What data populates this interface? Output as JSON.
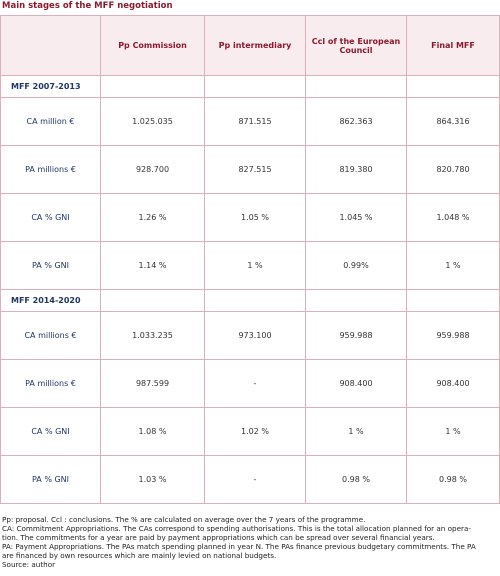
{
  "title": "Main stages of the MFF negotiation",
  "table": {
    "header": [
      "",
      "Pp Commission",
      "Pp intermediary",
      "Ccl of the European Council",
      "Final MFF"
    ],
    "sections": [
      {
        "title": "MFF 2007-2013",
        "rows": [
          [
            "CA million €",
            "1.025.035",
            "871.515",
            "862.363",
            "864.316"
          ],
          [
            "PA millions €",
            "928.700",
            "827.515",
            "819.380",
            "820.780"
          ],
          [
            "CA % GNI",
            "1.26 %",
            "1.05 %",
            "1.045 %",
            "1.048 %"
          ],
          [
            "PA % GNI",
            "1.14 %",
            "1 %",
            "0.99%",
            "1 %"
          ]
        ]
      },
      {
        "title": "MFF 2014-2020",
        "rows": [
          [
            "CA millions €",
            "1.033.235",
            "973.100",
            "959.988",
            "959.988"
          ],
          [
            "PA millions €",
            "987.599",
            "-",
            "908.400",
            "908.400"
          ],
          [
            "CA % GNI",
            "1.08 %",
            "1.02 %",
            "1 %",
            "1 %"
          ],
          [
            "PA % GNI",
            "1.03 %",
            "-",
            "0.98 %",
            "0.98 %"
          ]
        ]
      }
    ]
  },
  "notes": [
    "Pp: proposal. Ccl : conclusions. The % are calculated on average over the 7 years of the programme.",
    "CA: Commitment Appropriations. The CAs correspond to spending authorisations. This is the total allocation planned for an opera-",
    "tion. The commitments for a year are paid by payment appropriations which can be spread over several financial years.",
    "PA: Payment Appropriations. The PAs match spending planned in year N. The PAs finance previous budgetary commitments. The PA",
    "are financed by own resources which are mainly levied on national budgets.",
    "Source: author"
  ]
}
